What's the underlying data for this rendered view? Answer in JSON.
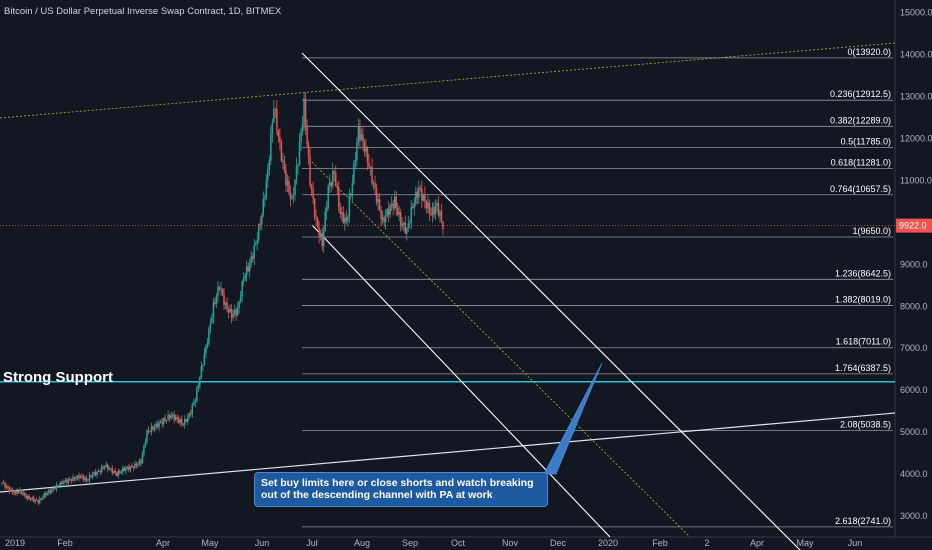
{
  "chart_data": {
    "type": "candlestick",
    "title": "Bitcoin / US Dollar Perpetual Inverse Swap Contract, 1D, BITMEX",
    "ylim": [
      2500,
      15300
    ],
    "y_ticks": [
      3000,
      4000,
      5000,
      6000,
      7000,
      8000,
      9000,
      10000,
      11000,
      12000,
      13000,
      14000,
      15000
    ],
    "y_tick_labels": [
      "3000.0",
      "4000.0",
      "5000.0",
      "6000.0",
      "7000.0",
      "8000.0",
      "9000.0",
      "10000.0",
      "11000.0",
      "12000.0",
      "13000.0",
      "14000.0",
      "15000.0"
    ],
    "x_tick_labels": [
      "2019",
      "Feb",
      "Apr",
      "May",
      "Jun",
      "Jul",
      "Aug",
      "Sep",
      "Oct",
      "Nov",
      "Dec",
      "2020",
      "Feb",
      "2",
      "Apr",
      "May",
      "Jun"
    ],
    "current_price": "9922.0",
    "colors": {
      "up": "#26a69a",
      "down": "#ef5350",
      "background": "#131722",
      "support": "#26c6da",
      "channel": "#ffffff",
      "trendline": "#b5b538",
      "callout": "#1e5aa0"
    },
    "price_path": [
      3800,
      3650,
      3550,
      3600,
      3450,
      3400,
      3350,
      3500,
      3600,
      3700,
      3800,
      3850,
      3900,
      3950,
      3850,
      4000,
      4050,
      4200,
      4100,
      4000,
      4100,
      4150,
      4200,
      4300,
      5000,
      5100,
      5200,
      5300,
      5400,
      5300,
      5200,
      5400,
      5800,
      6500,
      7200,
      8000,
      8500,
      8000,
      7800,
      7900,
      8700,
      9000,
      9500,
      10200,
      11200,
      12800,
      11800,
      11000,
      10500,
      11500,
      12800,
      11000,
      10000,
      9500,
      10800,
      11200,
      10200,
      10000,
      11000,
      12200,
      11800,
      11200,
      10600,
      10000,
      10300,
      10500,
      10000,
      9800,
      10400,
      10800,
      10500,
      10200,
      10400,
      9922
    ],
    "fibonacci": [
      {
        "label": "0(13920.0)",
        "price": 13920
      },
      {
        "label": "0.236(12912.5)",
        "price": 12912.5
      },
      {
        "label": "0.382(12289.0)",
        "price": 12289
      },
      {
        "label": "0.5(11785.0)",
        "price": 11785
      },
      {
        "label": "0.618(11281.0)",
        "price": 11281
      },
      {
        "label": "0.764(10657.5)",
        "price": 10657.5
      },
      {
        "label": "1(9650.0)",
        "price": 9650
      },
      {
        "label": "1.236(8642.5)",
        "price": 8642.5
      },
      {
        "label": "1.382(8019.0)",
        "price": 8019
      },
      {
        "label": "1.618(7011.0)",
        "price": 7011
      },
      {
        "label": "1.764(6387.5)",
        "price": 6387.5
      },
      {
        "label": "2.08(5038.5)",
        "price": 5038.5
      },
      {
        "label": "2.618(2741.0)",
        "price": 2741
      }
    ],
    "annotations": {
      "support_label": "Strong Support",
      "support_price": 6200,
      "callout_text": "Set buy limits here or close shorts and watch breaking out of the descending channel with PA at work"
    }
  }
}
